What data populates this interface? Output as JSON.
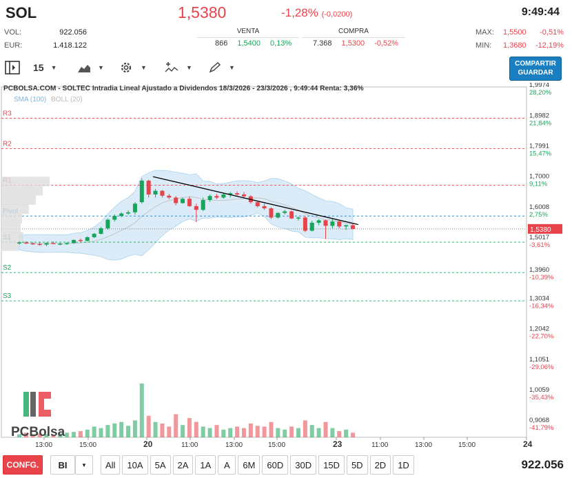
{
  "header": {
    "symbol": "SOL",
    "price": "1,5380",
    "change_pct": "-1,28%",
    "change_abs": "(-0,0200)",
    "time": "9:49:44",
    "vol_label": "VOL:",
    "vol_value": "922.056",
    "eur_label": "EUR:",
    "eur_value": "1.418.122",
    "max_label": "MAX:",
    "max_value": "1,5500",
    "max_pct": "-0,51%",
    "min_label": "MIN:",
    "min_value": "1,3680",
    "min_pct": "-12,19%"
  },
  "sell": {
    "title": "VENTA",
    "qty": "866",
    "price": "1,5400",
    "pct": "0,13%"
  },
  "buy": {
    "title": "COMPRA",
    "qty": "7.368",
    "price": "1,5300",
    "pct": "-0,52%"
  },
  "toolbar": {
    "interval": "15",
    "share_line1": "COMPARTIR",
    "share_line2": "GUARDAR"
  },
  "chart": {
    "title": "PCBOLSA.COM - SOLTEC Intradia Lineal Ajustado a Dividendos 18/3/2026 - 23/3/2026 , 9:49:44 Renta: 3,36%",
    "legend_sma": "SMA (100)",
    "legend_boll": "BOLL (20)",
    "watermark": "PCBolsa",
    "current_label": "1,5380",
    "levels": [
      {
        "name": "R3",
        "price": 1.8982,
        "color": "#e8424a"
      },
      {
        "name": "R2",
        "price": 1.7991,
        "color": "#e8424a"
      },
      {
        "name": "R1",
        "price": 1.68,
        "color": "#e8424a"
      },
      {
        "name": "Pivot",
        "price": 1.58,
        "color": "#1a7fc0"
      },
      {
        "name": "S1",
        "price": 1.495,
        "color": "#1aa35a"
      },
      {
        "name": "S2",
        "price": 1.396,
        "color": "#1aa35a"
      },
      {
        "name": "S3",
        "price": 1.304,
        "color": "#1aa35a"
      }
    ],
    "price_axis": [
      {
        "price": "1,9974",
        "pct": "28,20%"
      },
      {
        "price": "1,8982",
        "pct": "21,84%"
      },
      {
        "price": "1,7991",
        "pct": "15,47%"
      },
      {
        "price": "1,7000",
        "pct": "9,11%"
      },
      {
        "price": "1,6008",
        "pct": "2,75%"
      },
      {
        "price": "1,5017",
        "pct": "-3,61%"
      },
      {
        "price": "1,3960",
        "pct": "-10,39%"
      },
      {
        "price": "1,3034",
        "pct": "-16,34%"
      },
      {
        "price": "1,2042",
        "pct": "-22,70%"
      },
      {
        "price": "1,1051",
        "pct": "-29,06%"
      },
      {
        "price": "1,0059",
        "pct": "-35,43%"
      },
      {
        "price": "0,9068",
        "pct": "-41,79%"
      }
    ],
    "time_axis": [
      "13:00",
      "15:00",
      "20",
      "11:00",
      "13:00",
      "15:00",
      "23",
      "11:00",
      "13:00",
      "15:00",
      "24"
    ]
  },
  "chart_data": {
    "type": "candlestick",
    "ylim": [
      0.86,
      2.0
    ],
    "candles": [
      [
        1.492,
        1.497,
        1.487,
        1.494
      ],
      [
        1.494,
        1.498,
        1.488,
        1.491
      ],
      [
        1.491,
        1.495,
        1.486,
        1.489
      ],
      [
        1.489,
        1.494,
        1.484,
        1.487
      ],
      [
        1.487,
        1.494,
        1.482,
        1.492
      ],
      [
        1.492,
        1.497,
        1.488,
        1.489
      ],
      [
        1.489,
        1.493,
        1.485,
        1.49
      ],
      [
        1.49,
        1.495,
        1.486,
        1.492
      ],
      [
        1.492,
        1.504,
        1.49,
        1.502
      ],
      [
        1.502,
        1.507,
        1.496,
        1.499
      ],
      [
        1.499,
        1.514,
        1.497,
        1.511
      ],
      [
        1.511,
        1.525,
        1.508,
        1.522
      ],
      [
        1.522,
        1.545,
        1.52,
        1.54
      ],
      [
        1.54,
        1.572,
        1.536,
        1.568
      ],
      [
        1.568,
        1.585,
        1.562,
        1.58
      ],
      [
        1.58,
        1.592,
        1.576,
        1.588
      ],
      [
        1.588,
        1.598,
        1.584,
        1.592
      ],
      [
        1.592,
        1.625,
        1.585,
        1.62
      ],
      [
        1.625,
        1.702,
        1.62,
        1.695
      ],
      [
        1.695,
        1.698,
        1.64,
        1.65
      ],
      [
        1.65,
        1.668,
        1.64,
        1.662
      ],
      [
        1.662,
        1.664,
        1.64,
        1.646
      ],
      [
        1.646,
        1.652,
        1.635,
        1.64
      ],
      [
        1.64,
        1.645,
        1.615,
        1.622
      ],
      [
        1.622,
        1.64,
        1.62,
        1.636
      ],
      [
        1.636,
        1.644,
        1.61,
        1.612
      ],
      [
        1.612,
        1.62,
        1.56,
        1.6
      ],
      [
        1.6,
        1.64,
        1.596,
        1.632
      ],
      [
        1.632,
        1.65,
        1.626,
        1.645
      ],
      [
        1.645,
        1.652,
        1.635,
        1.64
      ],
      [
        1.64,
        1.655,
        1.636,
        1.65
      ],
      [
        1.65,
        1.658,
        1.64,
        1.654
      ],
      [
        1.654,
        1.66,
        1.646,
        1.65
      ],
      [
        1.65,
        1.658,
        1.64,
        1.644
      ],
      [
        1.644,
        1.648,
        1.62,
        1.625
      ],
      [
        1.625,
        1.63,
        1.608,
        1.612
      ],
      [
        1.612,
        1.62,
        1.6,
        1.605
      ],
      [
        1.605,
        1.608,
        1.57,
        1.575
      ],
      [
        1.575,
        1.592,
        1.572,
        1.59
      ],
      [
        1.59,
        1.6,
        1.585,
        1.595
      ],
      [
        1.595,
        1.598,
        1.57,
        1.572
      ],
      [
        1.572,
        1.578,
        1.565,
        1.575
      ],
      [
        1.575,
        1.58,
        1.528,
        1.532
      ],
      [
        1.532,
        1.565,
        1.53,
        1.558
      ],
      [
        1.558,
        1.57,
        1.55,
        1.566
      ],
      [
        1.566,
        1.568,
        1.505,
        1.548
      ],
      [
        1.548,
        1.57,
        1.54,
        1.562
      ],
      [
        1.562,
        1.566,
        1.54,
        1.546
      ],
      [
        1.546,
        1.552,
        1.535,
        1.55
      ],
      [
        1.55,
        1.556,
        1.536,
        1.538
      ]
    ],
    "volumes": [
      4,
      6,
      3,
      5,
      4,
      3,
      5,
      6,
      7,
      8,
      10,
      14,
      12,
      16,
      18,
      20,
      15,
      22,
      70,
      28,
      20,
      18,
      14,
      30,
      16,
      25,
      20,
      14,
      12,
      16,
      10,
      12,
      14,
      12,
      18,
      15,
      14,
      20,
      12,
      10,
      14,
      12,
      22,
      16,
      12,
      20,
      12,
      8,
      10,
      6
    ]
  },
  "bottom": {
    "config": "CONFG.",
    "type": "BI",
    "ranges": [
      "All",
      "10A",
      "5A",
      "2A",
      "1A",
      "A",
      "6M",
      "60D",
      "30D",
      "15D",
      "5D",
      "2D",
      "1D"
    ],
    "total": "922.056"
  },
  "colors": {
    "up": "#1aa35a",
    "down": "#e8424a",
    "accent": "#1a7fc0"
  }
}
